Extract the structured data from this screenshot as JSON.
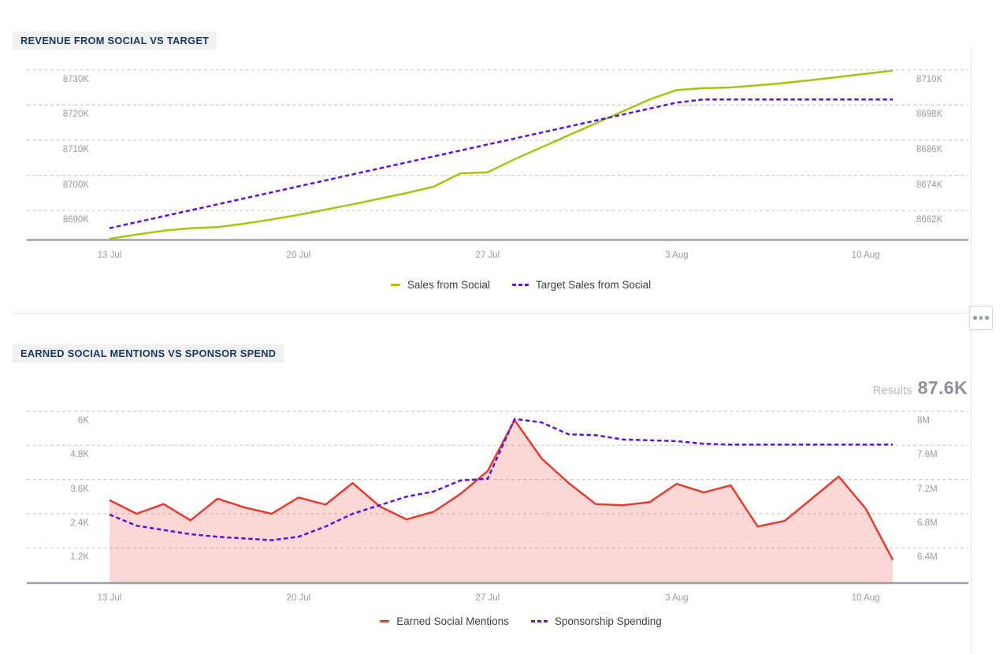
{
  "controls": {
    "more_button_icon": "ellipsis-icon"
  },
  "chart_data": [
    {
      "type": "line",
      "title": "REVENUE FROM SOCIAL VS TARGET",
      "x_tick_labels": [
        "13 Jul",
        "20 Jul",
        "27 Jul",
        "3 Aug",
        "10 Aug"
      ],
      "x_tick_indices": [
        0,
        7,
        14,
        21,
        28
      ],
      "grid": "dashed-horizontal",
      "legend_position": "bottom-center",
      "left_axis": {
        "unit": "K",
        "ticks": [
          "8730K",
          "8720K",
          "8710K",
          "8700K",
          "8690K"
        ],
        "tick_values": [
          8730,
          8720,
          8710,
          8700,
          8690
        ]
      },
      "right_axis": {
        "unit": "K",
        "ticks": [
          "8710K",
          "8698K",
          "8686K",
          "8674K",
          "8662K"
        ],
        "tick_values": [
          8710,
          8698,
          8686,
          8674,
          8662
        ]
      },
      "series": [
        {
          "name": "Sales from Social",
          "color": "#a3c50c",
          "line_style": "solid",
          "axis": "left",
          "fill": false,
          "unit": "K",
          "values": [
            8682.0,
            8683.2,
            8684.3,
            8685.0,
            8685.3,
            8686.3,
            8687.5,
            8688.8,
            8690.3,
            8691.8,
            8693.4,
            8695.0,
            8696.8,
            8700.6,
            8700.9,
            8704.6,
            8708.0,
            8711.4,
            8714.8,
            8718.2,
            8721.6,
            8724.3,
            8724.8,
            8725.0,
            8725.6,
            8726.3,
            8727.1,
            8728.0,
            8728.9,
            8729.8
          ]
        },
        {
          "name": "Target Sales from Social",
          "color": "#5a13dc",
          "line_style": "dashed",
          "axis": "left",
          "fill": false,
          "unit": "K",
          "values": [
            8685.0,
            8686.7,
            8688.4,
            8690.1,
            8691.8,
            8693.5,
            8695.2,
            8696.9,
            8698.6,
            8700.3,
            8702.0,
            8703.7,
            8705.4,
            8707.1,
            8708.8,
            8710.5,
            8712.2,
            8713.9,
            8715.6,
            8717.3,
            8719.0,
            8720.7,
            8721.6,
            8721.6,
            8721.6,
            8721.6,
            8721.6,
            8721.6,
            8721.6,
            8721.6
          ]
        }
      ]
    },
    {
      "type": "line-area",
      "title": "EARNED SOCIAL MENTIONS VS SPONSOR SPEND",
      "results_label": "Results",
      "results_value": "87.6K",
      "x_tick_labels": [
        "13 Jul",
        "20 Jul",
        "27 Jul",
        "3 Aug",
        "10 Aug"
      ],
      "x_tick_indices": [
        0,
        7,
        14,
        21,
        28
      ],
      "grid": "dashed-horizontal",
      "legend_position": "bottom-center",
      "left_axis": {
        "unit": "K",
        "ticks": [
          "6K",
          "4.8K",
          "3.6K",
          "2.4K",
          "1.2K"
        ],
        "tick_values": [
          6,
          4.8,
          3.6,
          2.4,
          1.2
        ]
      },
      "right_axis": {
        "unit": "M",
        "ticks": [
          "8M",
          "7.6M",
          "7.2M",
          "6.8M",
          "6.4M"
        ],
        "tick_values": [
          8,
          7.6,
          7.2,
          6.8,
          6.4
        ]
      },
      "series": [
        {
          "name": "Earned Social Mentions",
          "color": "#e53b30",
          "line_style": "solid",
          "axis": "left",
          "fill": true,
          "fill_opacity": 0.2,
          "unit": "K",
          "values": [
            2.88,
            2.4,
            2.74,
            2.17,
            2.93,
            2.62,
            2.4,
            2.97,
            2.72,
            3.48,
            2.66,
            2.2,
            2.47,
            3.1,
            3.9,
            5.69,
            4.34,
            3.48,
            2.74,
            2.7,
            2.81,
            3.45,
            3.15,
            3.4,
            1.95,
            2.15,
            2.93,
            3.71,
            2.58,
            0.78
          ]
        },
        {
          "name": "Sponsorship Spending",
          "color": "#5a13dc",
          "line_style": "dashed",
          "axis": "right",
          "fill": false,
          "unit": "M",
          "values": [
            6.79,
            6.66,
            6.61,
            6.56,
            6.53,
            6.51,
            6.49,
            6.53,
            6.65,
            6.8,
            6.9,
            7.0,
            7.06,
            7.19,
            7.21,
            7.91,
            7.87,
            7.73,
            7.72,
            7.67,
            7.66,
            7.65,
            7.62,
            7.61,
            7.61,
            7.61,
            7.61,
            7.61,
            7.61,
            7.61
          ]
        }
      ]
    }
  ]
}
